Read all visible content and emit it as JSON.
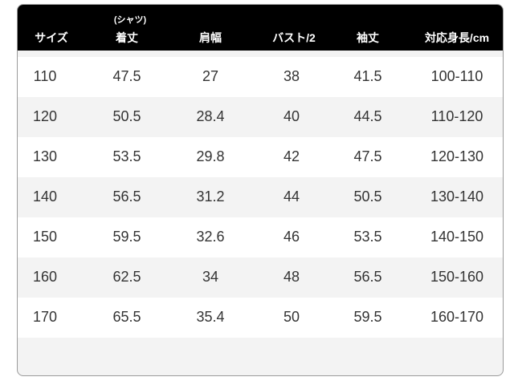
{
  "header": {
    "columns": [
      "サイズ",
      "着丈",
      "肩幅",
      "バスト/2",
      "袖丈",
      "対応身長/cm"
    ],
    "subtitle": "(シャツ)"
  },
  "rows": [
    [
      "110",
      "47.5",
      "27",
      "38",
      "41.5",
      "100-110"
    ],
    [
      "120",
      "50.5",
      "28.4",
      "40",
      "44.5",
      "110-120"
    ],
    [
      "130",
      "53.5",
      "29.8",
      "42",
      "47.5",
      "120-130"
    ],
    [
      "140",
      "56.5",
      "31.2",
      "44",
      "50.5",
      "130-140"
    ],
    [
      "150",
      "59.5",
      "32.6",
      "46",
      "53.5",
      "140-150"
    ],
    [
      "160",
      "62.5",
      "34",
      "48",
      "56.5",
      "150-160"
    ],
    [
      "170",
      "65.5",
      "35.4",
      "50",
      "59.5",
      "160-170"
    ]
  ],
  "colors": {
    "header_bg": "#000000",
    "header_text": "#ffffff",
    "row_alt": "#f3f3f3"
  }
}
